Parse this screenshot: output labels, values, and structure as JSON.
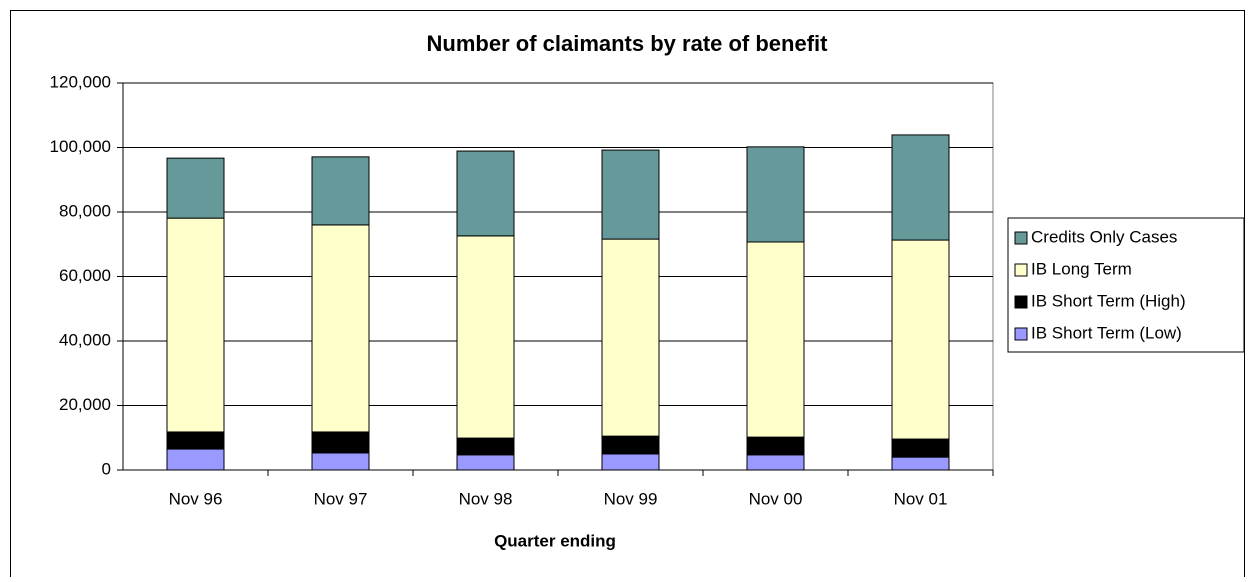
{
  "chart_data": {
    "type": "stacked_bar",
    "title": "Number of claimants by rate of benefit",
    "x_label": "Quarter ending",
    "categories": [
      "Nov 96",
      "Nov 97",
      "Nov 98",
      "Nov 99",
      "Nov 00",
      "Nov 01"
    ],
    "series": [
      {
        "name": "IB Short Term (Low)",
        "color": "#9999ff",
        "values": [
          6500,
          5300,
          4700,
          5000,
          4700,
          4000
        ]
      },
      {
        "name": "IB Short Term (High)",
        "color": "#000000",
        "values": [
          5300,
          6500,
          5200,
          5500,
          5500,
          5600
        ]
      },
      {
        "name": "IB Long Term",
        "color": "#ffffcc",
        "values": [
          66300,
          64200,
          62700,
          61100,
          60500,
          61700
        ]
      },
      {
        "name": "Credits Only Cases",
        "color": "#669999",
        "values": [
          18600,
          21100,
          26300,
          27600,
          29500,
          32600
        ]
      }
    ],
    "ylim": [
      0,
      120000
    ],
    "yticks": [
      0,
      {
        "value": 20000,
        "label": "20,000"
      },
      {
        "value": 40000,
        "label": "40,000"
      },
      {
        "value": 60000,
        "label": "60,000"
      },
      {
        "value": 80000,
        "label": "80,000"
      },
      {
        "value": 100000,
        "label": "100,000"
      },
      {
        "value": 120000,
        "label": "120,000"
      }
    ],
    "grid": true,
    "legend": "right"
  }
}
